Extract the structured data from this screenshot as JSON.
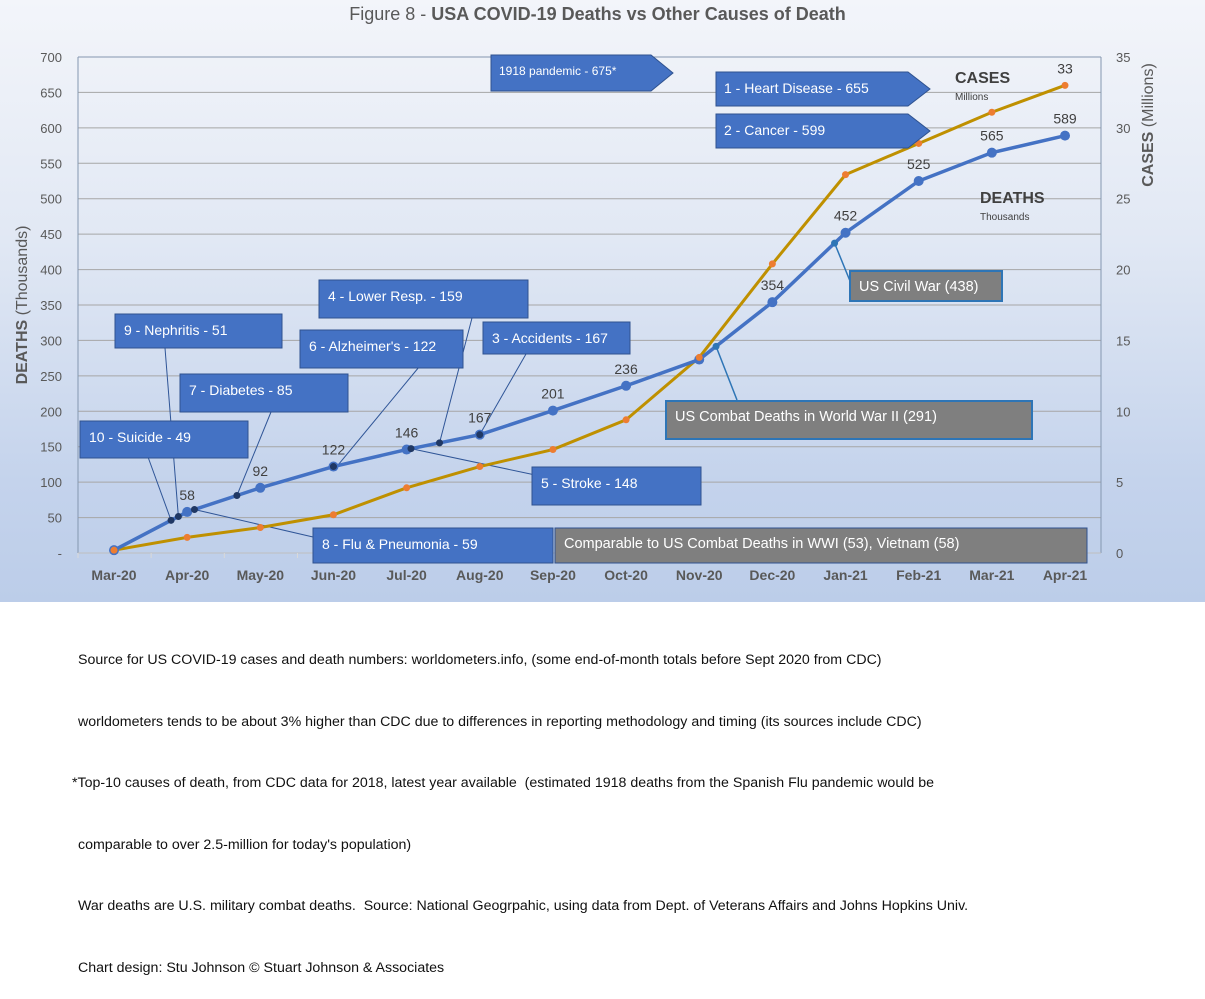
{
  "title_prefix": "Figure 8 - ",
  "title_main": "USA COVID-19 Deaths vs Other Causes of Death",
  "chart_data": {
    "type": "line",
    "title": "Figure 8 - USA COVID-19 Deaths vs Other Causes of Death",
    "categories": [
      "Mar-20",
      "Apr-20",
      "May-20",
      "Jun-20",
      "Jul-20",
      "Aug-20",
      "Sep-20",
      "Oct-20",
      "Nov-20",
      "Dec-20",
      "Jan-21",
      "Feb-21",
      "Mar-21",
      "Apr-21"
    ],
    "ylabel": "DEATHS (Thousands)",
    "y2label": "CASES (Millions)",
    "ylim": [
      0,
      700
    ],
    "y2lim": [
      0,
      35
    ],
    "yticks": [
      "-",
      "50",
      "100",
      "150",
      "200",
      "250",
      "300",
      "350",
      "400",
      "450",
      "500",
      "550",
      "600",
      "650",
      "700"
    ],
    "y2ticks": [
      "0",
      "5",
      "10",
      "15",
      "20",
      "25",
      "30",
      "35"
    ],
    "grid": true,
    "series": [
      {
        "name": "DEATHS",
        "subtitle": "Thousands",
        "axis": "left",
        "color": "#4472c4",
        "values": [
          4,
          58,
          92,
          122,
          146,
          167,
          201,
          236,
          273,
          354,
          452,
          525,
          565,
          589
        ],
        "labels": [
          "",
          "58",
          "92",
          "122",
          "146",
          "167",
          "201",
          "236",
          "",
          "354",
          "452",
          "525",
          "565",
          "589"
        ]
      },
      {
        "name": "CASES",
        "subtitle": "Millions",
        "axis": "right",
        "color": "#bf9000",
        "marker_color": "#ed7d31",
        "values": [
          0.2,
          1.1,
          1.8,
          2.7,
          4.6,
          6.1,
          7.3,
          9.4,
          13.8,
          20.4,
          26.7,
          28.9,
          31.1,
          33
        ],
        "labels": [
          "",
          "",
          "",
          "",
          "",
          "",
          "",
          "",
          "",
          "",
          "",
          "",
          "",
          "33"
        ]
      }
    ],
    "annotations": [
      {
        "text": "1918 pandemic - 675*",
        "value": 675,
        "style": "arrow"
      },
      {
        "text": "1 - Heart Disease - 655",
        "value": 655,
        "style": "arrow"
      },
      {
        "text": "2 - Cancer - 599",
        "value": 599,
        "style": "arrow"
      },
      {
        "text": "3 - Accidents - 167",
        "value": 167,
        "style": "callout"
      },
      {
        "text": "4 - Lower Resp.  - 159",
        "value": 159,
        "style": "callout"
      },
      {
        "text": "5 -  Stroke - 148",
        "value": 148,
        "style": "callout"
      },
      {
        "text": "6 - Alzheimer's - 122",
        "value": 122,
        "style": "callout"
      },
      {
        "text": "7 - Diabetes - 85",
        "value": 85,
        "style": "callout"
      },
      {
        "text": "8 - Flu & Pneumonia - 59",
        "value": 59,
        "style": "callout"
      },
      {
        "text": "9 - Nephritis - 51",
        "value": 51,
        "style": "callout"
      },
      {
        "text": "10 - Suicide - 49",
        "value": 49,
        "style": "callout"
      },
      {
        "text": "US Civil War (438)",
        "value": 438,
        "style": "war"
      },
      {
        "text": "US Combat Deaths in World War II (291)",
        "value": 291,
        "style": "war"
      },
      {
        "text": "Comparable to US Combat Deaths in WWI (53), Vietnam (58)",
        "value": 55,
        "style": "war"
      }
    ]
  },
  "footnotes": [
    "Source for US COVID-19 cases and death numbers: worldometers.info, (some end-of-month totals before Sept 2020 from CDC)",
    "worldometers tends to be about 3% higher than CDC due to differences in reporting methodology and timing (its sources include CDC)",
    "*Top-10 causes of death, from CDC data for 2018, latest year available  (estimated 1918 deaths from the Spanish Flu pandemic would be",
    "comparable to over 2.5-million for today's population)",
    "War deaths are U.S. military combat deaths.  Source: National Geogrpahic, using data from Dept. of Veterans Affairs and Johns Hopkins Univ.",
    "Chart design: Stu Johnson © Stuart Johnson & Associates"
  ]
}
